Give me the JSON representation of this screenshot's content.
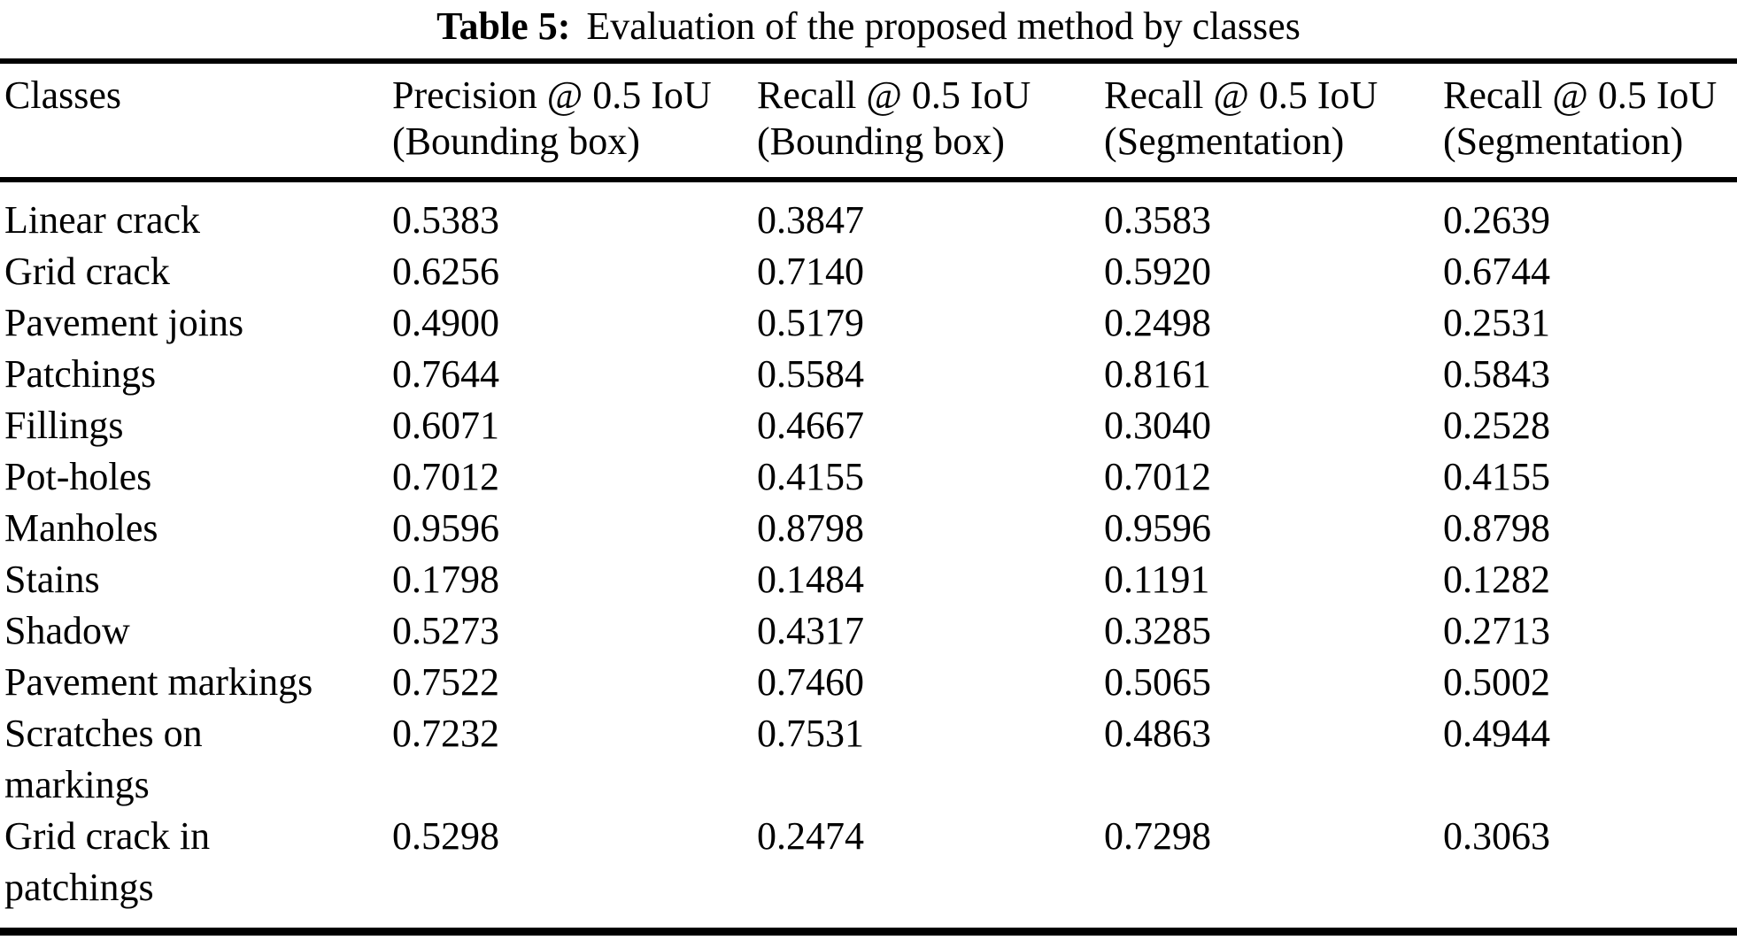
{
  "title": {
    "label": "Table 5:",
    "text": "Evaluation of the proposed method by classes"
  },
  "table": {
    "columns": [
      {
        "label": "Classes",
        "sub": ""
      },
      {
        "label": "Precision @ 0.5 IoU",
        "sub": "(Bounding box)"
      },
      {
        "label": "Recall @ 0.5 IoU",
        "sub": "(Bounding box)"
      },
      {
        "label": "Recall @ 0.5 IoU",
        "sub": "(Segmentation)"
      },
      {
        "label": "Recall @ 0.5 IoU",
        "sub": "(Segmentation)"
      }
    ],
    "rows": [
      {
        "class": "Linear crack",
        "values": [
          "0.5383",
          "0.3847",
          "0.3583",
          "0.2639"
        ]
      },
      {
        "class": "Grid crack",
        "values": [
          "0.6256",
          "0.7140",
          "0.5920",
          "0.6744"
        ]
      },
      {
        "class": "Pavement joins",
        "values": [
          "0.4900",
          "0.5179",
          "0.2498",
          "0.2531"
        ]
      },
      {
        "class": "Patchings",
        "values": [
          "0.7644",
          "0.5584",
          "0.8161",
          "0.5843"
        ]
      },
      {
        "class": "Fillings",
        "values": [
          "0.6071",
          "0.4667",
          "0.3040",
          "0.2528"
        ]
      },
      {
        "class": "Pot-holes",
        "values": [
          "0.7012",
          "0.4155",
          "0.7012",
          "0.4155"
        ]
      },
      {
        "class": "Manholes",
        "values": [
          "0.9596",
          "0.8798",
          "0.9596",
          "0.8798"
        ]
      },
      {
        "class": "Stains",
        "values": [
          "0.1798",
          "0.1484",
          "0.1191",
          "0.1282"
        ]
      },
      {
        "class": "Shadow",
        "values": [
          "0.5273",
          "0.4317",
          "0.3285",
          "0.2713"
        ]
      },
      {
        "class": "Pavement markings",
        "values": [
          "0.7522",
          "0.7460",
          "0.5065",
          "0.5002"
        ]
      },
      {
        "class": "Scratches on markings",
        "values": [
          "0.7232",
          "0.7531",
          "0.4863",
          "0.4944"
        ]
      },
      {
        "class": "Grid crack in patchings",
        "values": [
          "0.5298",
          "0.2474",
          "0.7298",
          "0.3063"
        ]
      }
    ]
  }
}
